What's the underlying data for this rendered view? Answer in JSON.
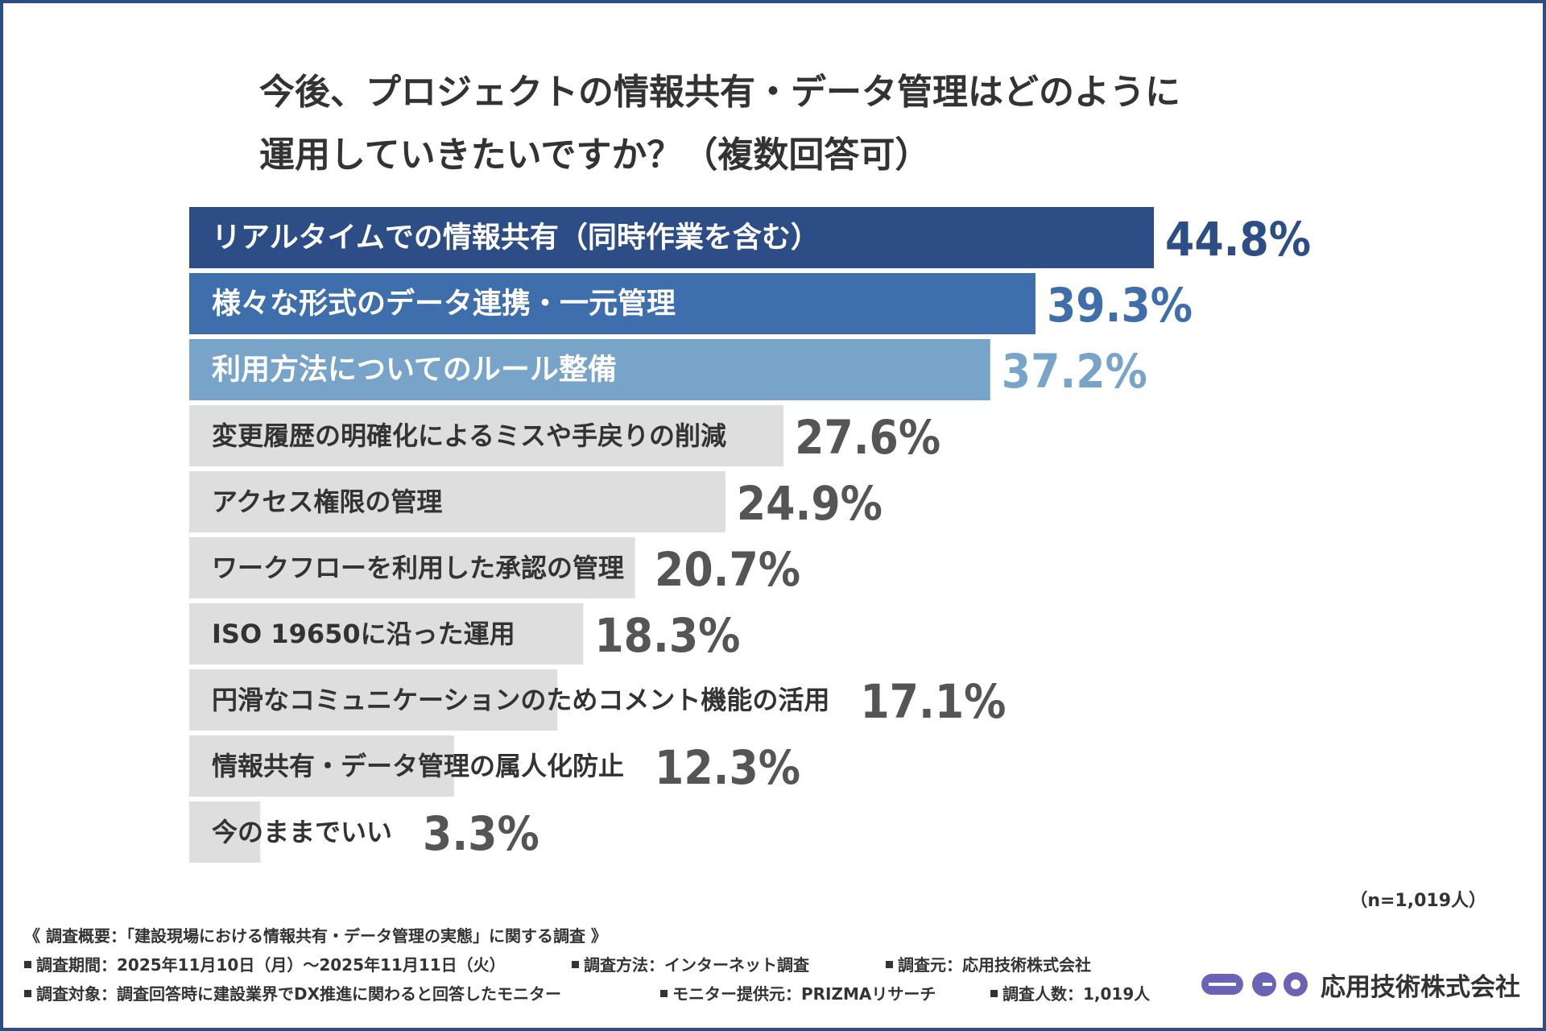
{
  "title": {
    "line1": "今後、プロジェクトの情報共有・データ管理はどのように",
    "line2": "運用していきたいですか？（複数回答可）"
  },
  "chart_data": {
    "type": "bar",
    "orientation": "horizontal",
    "title": "今後、プロジェクトの情報共有・データ管理はどのように運用していきたいですか？（複数回答可）",
    "unit": "%",
    "categories": [
      "リアルタイムでの情報共有（同時作業を含む）",
      "様々な形式のデータ連携・一元管理",
      "利用方法についてのルール整備",
      "変更履歴の明確化によるミスや手戻りの削減",
      "アクセス権限の管理",
      "ワークフローを利用した承認の管理",
      "ISO 19650に沿った運用",
      "円滑なコミュニケーションのためコメント機能の活用",
      "情報共有・データ管理の属人化防止",
      "今のままでいい"
    ],
    "values": [
      44.8,
      39.3,
      37.2,
      27.6,
      24.9,
      20.7,
      18.3,
      17.1,
      12.3,
      3.3
    ],
    "value_labels": [
      "44.8%",
      "39.3%",
      "37.2%",
      "27.6%",
      "24.9%",
      "20.7%",
      "18.3%",
      "17.1%",
      "12.3%",
      "3.3%"
    ],
    "bar_colors": [
      "#2c4d86",
      "#3f6eac",
      "#79a4c9",
      "#dedede",
      "#dedede",
      "#dedede",
      "#dedede",
      "#dedede",
      "#dedede",
      "#dedede"
    ],
    "label_colors": [
      "#ffffff",
      "#ffffff",
      "#ffffff",
      "#333333",
      "#333333",
      "#333333",
      "#333333",
      "#333333",
      "#333333",
      "#333333"
    ],
    "value_colors": [
      "#2c4d86",
      "#3f6eac",
      "#79a4c9",
      "#555555",
      "#555555",
      "#555555",
      "#555555",
      "#555555",
      "#555555",
      "#555555"
    ]
  },
  "sample_note": "（n=1,019人）",
  "survey": {
    "heading": "《 調査概要：「建設現場における情報共有・データ管理の実態」に関する調査 》",
    "period": "調査期間：2025年11月10日（月）～2025年11月11日（火）",
    "method": "調査方法：インターネット調査",
    "source": "調査元：応用技術株式会社",
    "target": "調査対象：調査回答時に建設業界でDX推進に関わると回答したモニター",
    "provider": "モニター提供元：PRIZMAリサーチ",
    "count": "調査人数：1,019人"
  },
  "logo": {
    "company": "応用技術株式会社",
    "icon": "company-logo-mark",
    "color": "#6b63b5"
  },
  "colors": {
    "frame": "#2c4d86",
    "text": "#333333"
  }
}
